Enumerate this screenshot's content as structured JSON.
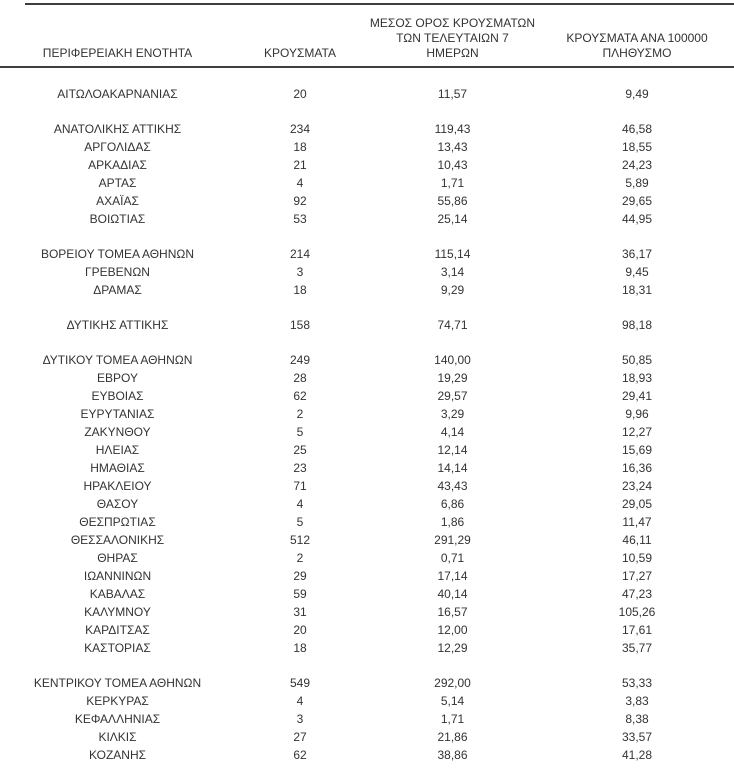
{
  "table": {
    "columns": [
      "ΠΕΡΙΦΕΡΕΙΑΚΗ ΕΝΟΤΗΤΑ",
      "ΚΡΟΥΣΜΑΤΑ",
      "ΜΕΣΟΣ ΟΡΟΣ ΚΡΟΥΣΜΑΤΩΝ\nΤΩΝ ΤΕΛΕΥΤΑΙΩΝ 7\nΗΜΕΡΩΝ",
      "ΚΡΟΥΣΜΑΤΑ ΑΝΑ 100000\nΠΛΗΘΥΣΜΟ"
    ],
    "groups": [
      {
        "rows": [
          {
            "region": "ΑΙΤΩΛΟΑΚΑΡΝΑΝΙΑΣ",
            "cases": "20",
            "avg7": "11,57",
            "per100k": "9,49"
          }
        ]
      },
      {
        "rows": [
          {
            "region": "ΑΝΑΤΟΛΙΚΗΣ ΑΤΤΙΚΗΣ",
            "cases": "234",
            "avg7": "119,43",
            "per100k": "46,58"
          },
          {
            "region": "ΑΡΓΟΛΙΔΑΣ",
            "cases": "18",
            "avg7": "13,43",
            "per100k": "18,55"
          },
          {
            "region": "ΑΡΚΑΔΙΑΣ",
            "cases": "21",
            "avg7": "10,43",
            "per100k": "24,23"
          },
          {
            "region": "ΑΡΤΑΣ",
            "cases": "4",
            "avg7": "1,71",
            "per100k": "5,89"
          },
          {
            "region": "ΑΧΑΪΑΣ",
            "cases": "92",
            "avg7": "55,86",
            "per100k": "29,65"
          },
          {
            "region": "ΒΟΙΩΤΙΑΣ",
            "cases": "53",
            "avg7": "25,14",
            "per100k": "44,95"
          }
        ]
      },
      {
        "rows": [
          {
            "region": "ΒΟΡΕΙΟΥ ΤΟΜΕΑ ΑΘΗΝΩΝ",
            "cases": "214",
            "avg7": "115,14",
            "per100k": "36,17"
          },
          {
            "region": "ΓΡΕΒΕΝΩΝ",
            "cases": "3",
            "avg7": "3,14",
            "per100k": "9,45"
          },
          {
            "region": "ΔΡΑΜΑΣ",
            "cases": "18",
            "avg7": "9,29",
            "per100k": "18,31"
          }
        ]
      },
      {
        "rows": [
          {
            "region": "ΔΥΤΙΚΗΣ ΑΤΤΙΚΗΣ",
            "cases": "158",
            "avg7": "74,71",
            "per100k": "98,18"
          }
        ]
      },
      {
        "rows": [
          {
            "region": "ΔΥΤΙΚΟΥ ΤΟΜΕΑ ΑΘΗΝΩΝ",
            "cases": "249",
            "avg7": "140,00",
            "per100k": "50,85"
          },
          {
            "region": "ΕΒΡΟΥ",
            "cases": "28",
            "avg7": "19,29",
            "per100k": "18,93"
          },
          {
            "region": "ΕΥΒΟΙΑΣ",
            "cases": "62",
            "avg7": "29,57",
            "per100k": "29,41"
          },
          {
            "region": "ΕΥΡΥΤΑΝΙΑΣ",
            "cases": "2",
            "avg7": "3,29",
            "per100k": "9,96"
          },
          {
            "region": "ΖΑΚΥΝΘΟΥ",
            "cases": "5",
            "avg7": "4,14",
            "per100k": "12,27"
          },
          {
            "region": "ΗΛΕΙΑΣ",
            "cases": "25",
            "avg7": "12,14",
            "per100k": "15,69"
          },
          {
            "region": "ΗΜΑΘΙΑΣ",
            "cases": "23",
            "avg7": "14,14",
            "per100k": "16,36"
          },
          {
            "region": "ΗΡΑΚΛΕΙΟΥ",
            "cases": "71",
            "avg7": "43,43",
            "per100k": "23,24"
          },
          {
            "region": "ΘΑΣΟΥ",
            "cases": "4",
            "avg7": "6,86",
            "per100k": "29,05"
          },
          {
            "region": "ΘΕΣΠΡΩΤΙΑΣ",
            "cases": "5",
            "avg7": "1,86",
            "per100k": "11,47"
          },
          {
            "region": "ΘΕΣΣΑΛΟΝΙΚΗΣ",
            "cases": "512",
            "avg7": "291,29",
            "per100k": "46,11"
          },
          {
            "region": "ΘΗΡΑΣ",
            "cases": "2",
            "avg7": "0,71",
            "per100k": "10,59"
          },
          {
            "region": "ΙΩΑΝΝΙΝΩΝ",
            "cases": "29",
            "avg7": "17,14",
            "per100k": "17,27"
          },
          {
            "region": "ΚΑΒΑΛΑΣ",
            "cases": "59",
            "avg7": "40,14",
            "per100k": "47,23"
          },
          {
            "region": "ΚΑΛΥΜΝΟΥ",
            "cases": "31",
            "avg7": "16,57",
            "per100k": "105,26"
          },
          {
            "region": "ΚΑΡΔΙΤΣΑΣ",
            "cases": "20",
            "avg7": "12,00",
            "per100k": "17,61"
          },
          {
            "region": "ΚΑΣΤΟΡΙΑΣ",
            "cases": "18",
            "avg7": "12,29",
            "per100k": "35,77"
          }
        ]
      },
      {
        "rows": [
          {
            "region": "ΚΕΝΤΡΙΚΟΥ ΤΟΜΕΑ ΑΘΗΝΩΝ",
            "cases": "549",
            "avg7": "292,00",
            "per100k": "53,33"
          },
          {
            "region": "ΚΕΡΚΥΡΑΣ",
            "cases": "4",
            "avg7": "5,14",
            "per100k": "3,83"
          },
          {
            "region": "ΚΕΦΑΛΛΗΝΙΑΣ",
            "cases": "3",
            "avg7": "1,71",
            "per100k": "8,38"
          },
          {
            "region": "ΚΙΛΚΙΣ",
            "cases": "27",
            "avg7": "21,86",
            "per100k": "33,57"
          },
          {
            "region": "ΚΟΖΑΝΗΣ",
            "cases": "62",
            "avg7": "38,86",
            "per100k": "41,28"
          }
        ]
      }
    ]
  },
  "colors": {
    "text": "#333333",
    "rule": "#3e3e3e",
    "thick_rule": "#565656",
    "background": "#ffffff"
  }
}
